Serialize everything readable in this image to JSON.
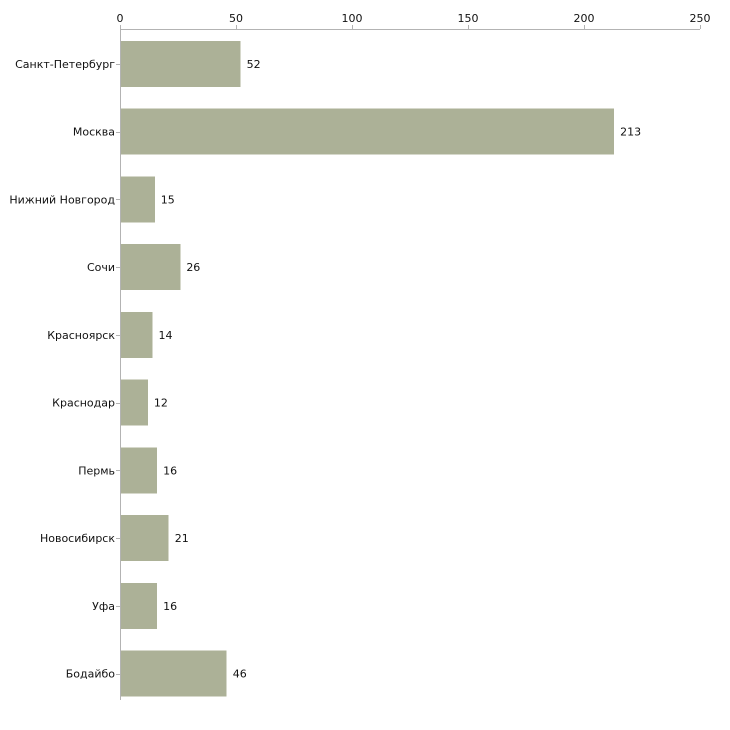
{
  "chart_data": {
    "type": "bar",
    "orientation": "horizontal",
    "title": "",
    "xlabel": "",
    "ylabel": "",
    "xlim": [
      0,
      250
    ],
    "x_ticks": [
      0,
      50,
      100,
      150,
      200,
      250
    ],
    "categories": [
      "Санкт-Петербург",
      "Москва",
      "Нижний Новгород",
      "Сочи",
      "Красноярск",
      "Краснодар",
      "Пермь",
      "Новосибирск",
      "Уфа",
      "Бодайбо"
    ],
    "values": [
      52,
      213,
      15,
      26,
      14,
      12,
      16,
      21,
      16,
      46
    ],
    "bar_color": "#acb197",
    "grid": false,
    "legend": "none"
  }
}
